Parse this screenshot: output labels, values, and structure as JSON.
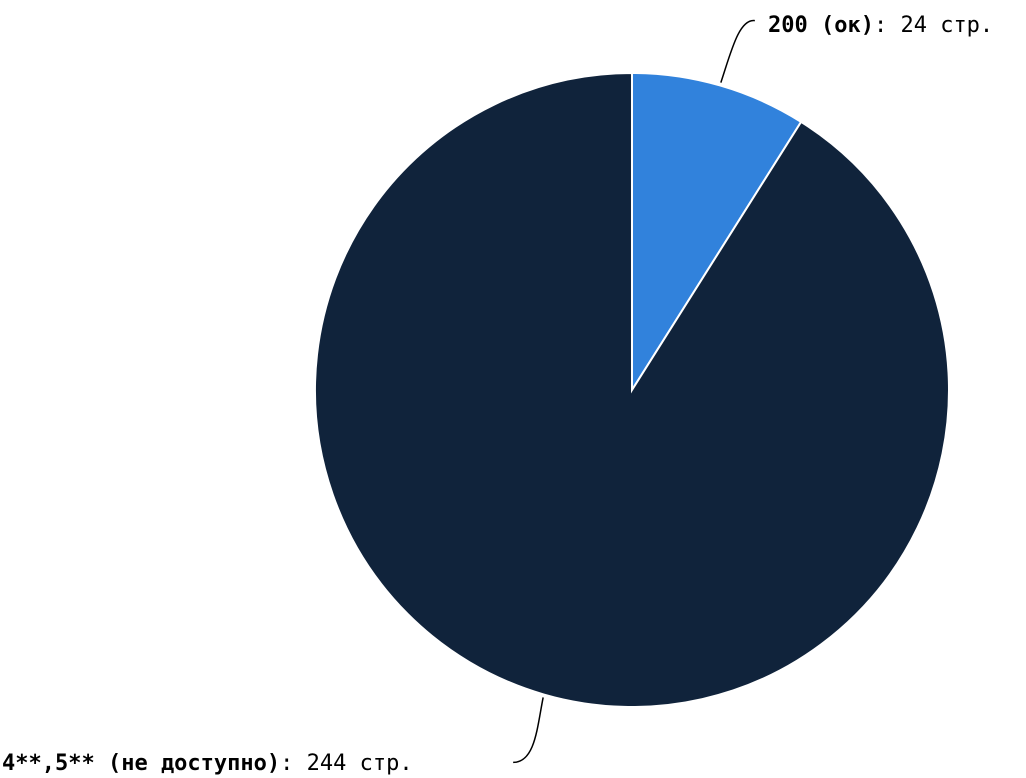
{
  "chart_data": {
    "type": "pie",
    "slices": [
      {
        "name": "200 (ок)",
        "value": 24,
        "value_text": ": 24 стр.",
        "color": "#3182dc"
      },
      {
        "name": "4**,5** (не доступно)",
        "value": 244,
        "value_text": ": 244 стр.",
        "color": "#10233b"
      }
    ],
    "start_angle_deg": 0,
    "direction": "clockwise",
    "legend": "none",
    "slice_border_color": "#ffffff"
  }
}
